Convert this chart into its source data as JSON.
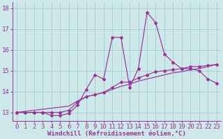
{
  "xlabel": "Windchill (Refroidissement éolien,°C)",
  "background_color": "#cce8e8",
  "grid_color": "#aacccc",
  "line_color": "#993399",
  "x_values": [
    0,
    1,
    2,
    3,
    4,
    5,
    6,
    7,
    8,
    9,
    10,
    11,
    12,
    13,
    14,
    15,
    16,
    17,
    18,
    19,
    20,
    21,
    22,
    23
  ],
  "series1": [
    13.0,
    13.0,
    13.0,
    13.0,
    12.85,
    12.85,
    12.95,
    13.35,
    14.1,
    14.8,
    14.6,
    16.6,
    16.6,
    14.2,
    15.1,
    17.8,
    17.3,
    15.8,
    15.4,
    15.1,
    15.1,
    15.0,
    14.6,
    14.4
  ],
  "series2": [
    13.0,
    13.0,
    13.0,
    13.0,
    13.0,
    13.0,
    13.1,
    13.5,
    13.75,
    13.85,
    13.95,
    14.2,
    14.45,
    14.45,
    14.65,
    14.8,
    14.95,
    15.0,
    15.05,
    15.1,
    15.2,
    15.2,
    15.25,
    15.3
  ],
  "series3": [
    13.0,
    13.05,
    13.1,
    13.15,
    13.2,
    13.25,
    13.3,
    13.55,
    13.75,
    13.85,
    13.95,
    14.1,
    14.25,
    14.35,
    14.5,
    14.6,
    14.7,
    14.8,
    14.9,
    14.95,
    15.05,
    15.1,
    15.2,
    15.3
  ],
  "ylim": [
    12.6,
    18.3
  ],
  "yticks": [
    13,
    14,
    15,
    16,
    17,
    18
  ],
  "xlim": [
    -0.5,
    23.5
  ],
  "xticks": [
    0,
    1,
    2,
    3,
    4,
    5,
    6,
    7,
    8,
    9,
    10,
    11,
    12,
    13,
    14,
    15,
    16,
    17,
    18,
    19,
    20,
    21,
    22,
    23
  ],
  "tick_fontsize": 6.5,
  "xlabel_fontsize": 6.5
}
